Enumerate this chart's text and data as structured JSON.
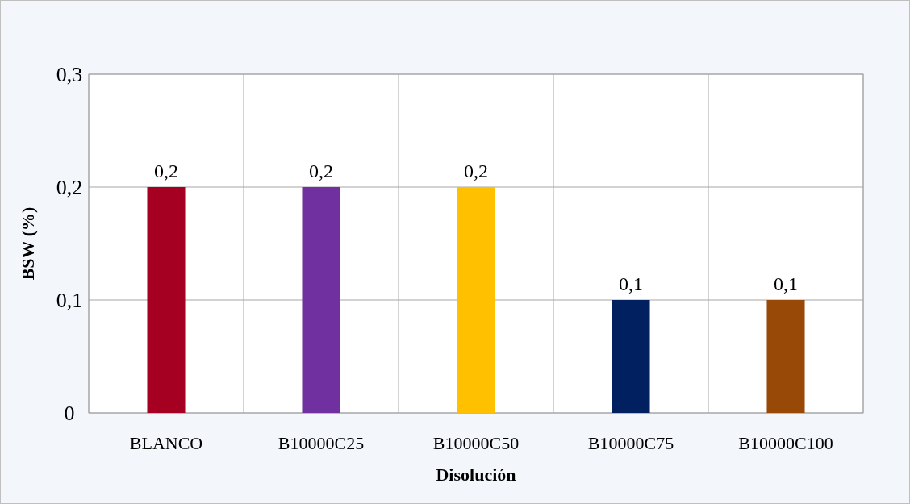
{
  "chart_data": {
    "type": "bar",
    "xlabel": "Disolución",
    "ylabel": "BSW (%)",
    "categories": [
      "BLANCO",
      "B10000C25",
      "B10000C50",
      "B10000C75",
      "B10000C100"
    ],
    "values": [
      0.2,
      0.2,
      0.2,
      0.1,
      0.1
    ],
    "colors": [
      "#a50021",
      "#7030a0",
      "#ffc000",
      "#002060",
      "#984807"
    ],
    "value_labels": [
      "0,2",
      "0,2",
      "0,2",
      "0,1",
      "0,1"
    ],
    "ylim": [
      0,
      0.3
    ],
    "yticks": [
      0,
      {
        "value": 0.1,
        "label": "0,1"
      },
      {
        "value": 0.2,
        "label": "0,2"
      },
      {
        "value": 0.3,
        "label": "0,3"
      }
    ],
    "grid": true
  }
}
